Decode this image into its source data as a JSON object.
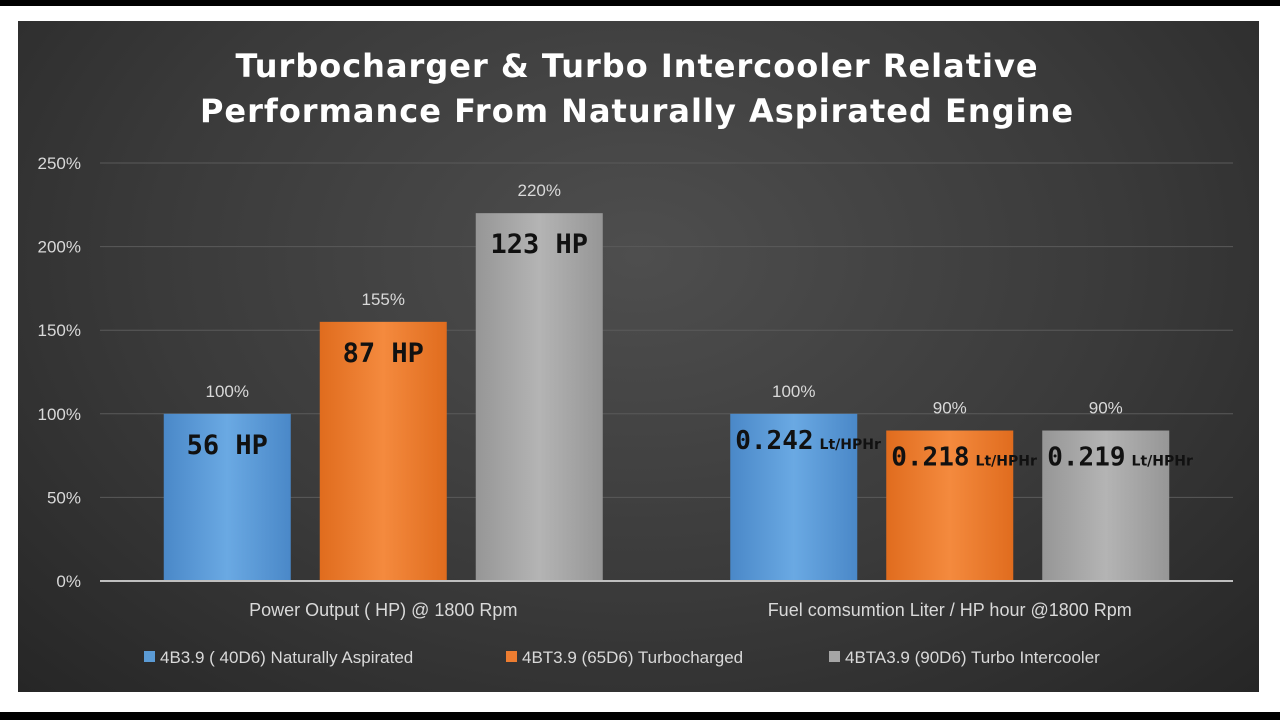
{
  "chart_data": {
    "type": "bar",
    "title": "Turbocharger & Turbo Intercooler Relative Performance From Naturally Aspirated Engine",
    "title_lines": [
      "Turbocharger & Turbo Intercooler Relative",
      "Performance From Naturally Aspirated Engine"
    ],
    "categories": [
      "Power Output ( HP) @ 1800 Rpm",
      "Fuel comsumtion Liter  / HP hour @1800 Rpm"
    ],
    "ylim": [
      0,
      250
    ],
    "yticks": [
      0,
      50,
      100,
      150,
      200,
      250
    ],
    "ytick_labels": [
      "0%",
      "50%",
      "100%",
      "150%",
      "200%",
      "250%"
    ],
    "grid": true,
    "legend_position": "bottom",
    "series": [
      {
        "name": "4B3.9 ( 40D6) Naturally Aspirated",
        "color": "#5b9bd5",
        "values": [
          100,
          100
        ],
        "value_labels": [
          "100%",
          "100%"
        ],
        "bar_labels": [
          {
            "big": "56 HP",
            "unit": ""
          },
          {
            "big": "0.242",
            "unit": "Lt/HPHr"
          }
        ]
      },
      {
        "name": "4BT3.9 (65D6) Turbocharged",
        "color": "#ed7d31",
        "values": [
          155,
          90
        ],
        "value_labels": [
          "155%",
          "90%"
        ],
        "bar_labels": [
          {
            "big": "87 HP",
            "unit": ""
          },
          {
            "big": "0.218",
            "unit": "Lt/HPHr"
          }
        ]
      },
      {
        "name": "4BTA3.9 (90D6) Turbo Intercooler",
        "color": "#a5a5a5",
        "values": [
          220,
          90
        ],
        "value_labels": [
          "220%",
          "90%"
        ],
        "bar_labels": [
          {
            "big": "123 HP",
            "unit": ""
          },
          {
            "big": "0.219",
            "unit": "Lt/HPHr"
          }
        ]
      }
    ]
  }
}
